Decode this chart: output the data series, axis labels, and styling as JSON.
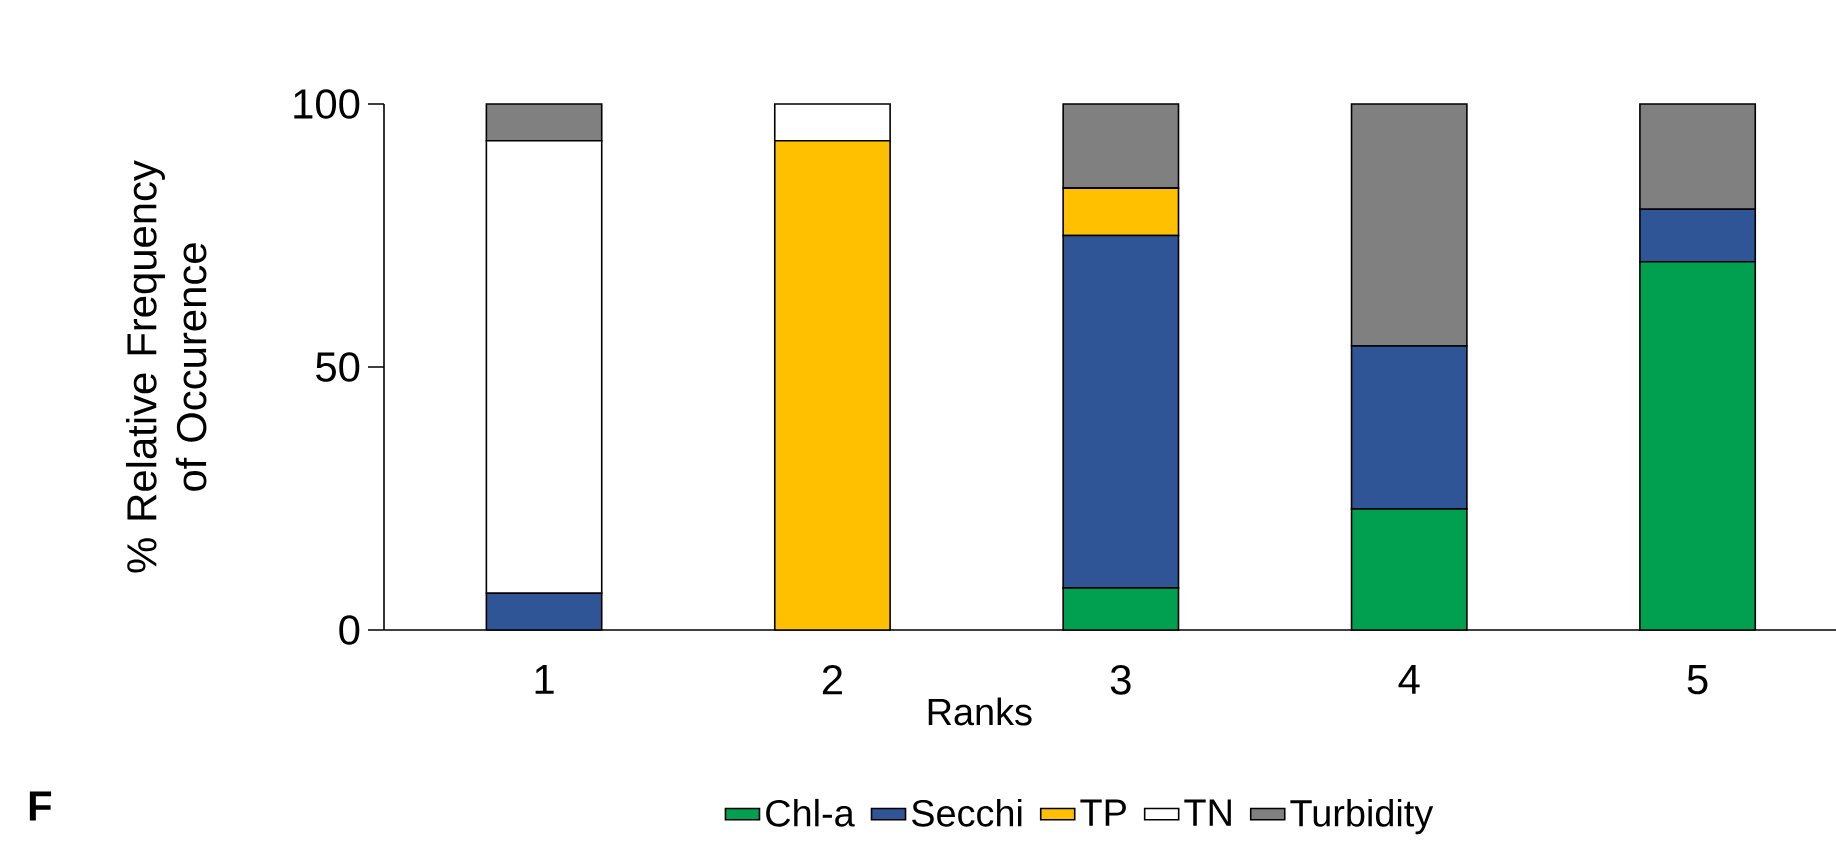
{
  "chart_data": {
    "type": "bar",
    "stacked": true,
    "categories": [
      "1",
      "2",
      "3",
      "4",
      "5"
    ],
    "xlabel": "Ranks",
    "ylabel": "% Relative Frequency of Occurence",
    "ylim": [
      0,
      100
    ],
    "yticks": [
      0,
      50,
      100
    ],
    "legend": "bottom",
    "grid": false,
    "annotations": [
      "F"
    ],
    "series": [
      {
        "name": "Chl-a",
        "color": "#00a050",
        "values": [
          0,
          0,
          8,
          23,
          70
        ]
      },
      {
        "name": "Secchi",
        "color": "#2f5597",
        "values": [
          7,
          0,
          67,
          31,
          10
        ]
      },
      {
        "name": "TP",
        "color": "#ffc000",
        "values": [
          0,
          93,
          9,
          0,
          0
        ]
      },
      {
        "name": "TN",
        "color": "#ffffff",
        "values": [
          86,
          7,
          0,
          0,
          0
        ]
      },
      {
        "name": "Turbidity",
        "color": "#808080",
        "values": [
          7,
          0,
          16,
          46,
          20
        ]
      }
    ]
  }
}
